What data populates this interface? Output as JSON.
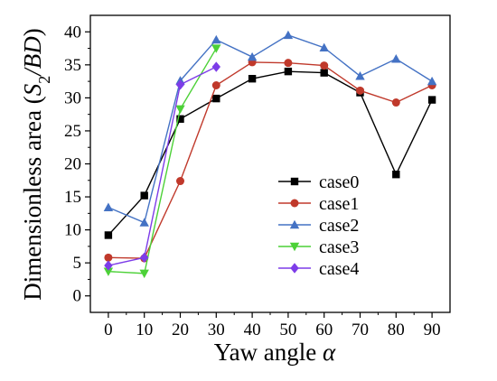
{
  "chart_data": {
    "type": "line",
    "title": "",
    "xlabel": "Yaw angle α",
    "ylabel": "Dimensionless area (S2/BD)",
    "ylabel_parts": {
      "pre": "Dimensionless area (",
      "var": "S",
      "sub": "2",
      "post_italic": "/BD",
      "close": ")"
    },
    "xlabel_parts": {
      "pre": "Yaw angle ",
      "var": "α"
    },
    "x": [
      0,
      10,
      20,
      30,
      40,
      50,
      60,
      70,
      80,
      90
    ],
    "xlim": [
      -5,
      95
    ],
    "ylim": [
      -2.5,
      42.5
    ],
    "xticks": [
      0,
      10,
      20,
      30,
      40,
      50,
      60,
      70,
      80,
      90
    ],
    "yticks": [
      0,
      5,
      10,
      15,
      20,
      25,
      30,
      35,
      40
    ],
    "grid": false,
    "legend_position": "lower-right",
    "series": [
      {
        "name": "case0",
        "color": "#000000",
        "marker": "square",
        "x": [
          0,
          10,
          20,
          30,
          40,
          50,
          60,
          70,
          80,
          90
        ],
        "values": [
          9.2,
          15.2,
          26.8,
          29.9,
          32.9,
          34.0,
          33.8,
          30.8,
          18.4,
          29.7
        ]
      },
      {
        "name": "case1",
        "color": "#c0392b",
        "marker": "circle",
        "x": [
          0,
          10,
          20,
          30,
          40,
          50,
          60,
          70,
          80,
          90
        ],
        "values": [
          5.8,
          5.7,
          17.4,
          31.9,
          35.4,
          35.3,
          34.9,
          31.1,
          29.3,
          31.9
        ]
      },
      {
        "name": "case2",
        "color": "#4472c4",
        "marker": "triangle-up",
        "x": [
          0,
          10,
          20,
          30,
          40,
          50,
          60,
          70,
          80,
          90
        ],
        "values": [
          13.4,
          11.1,
          32.6,
          38.8,
          36.2,
          39.5,
          37.6,
          33.3,
          35.9,
          32.5
        ]
      },
      {
        "name": "case3",
        "color": "#4cd137",
        "marker": "triangle-down",
        "x": [
          0,
          10,
          20,
          30
        ],
        "values": [
          3.7,
          3.4,
          28.3,
          37.5
        ]
      },
      {
        "name": "case4",
        "color": "#7d3ce8",
        "marker": "diamond",
        "x": [
          0,
          10,
          20,
          30
        ],
        "values": [
          4.6,
          5.8,
          32.0,
          34.7
        ]
      }
    ]
  }
}
